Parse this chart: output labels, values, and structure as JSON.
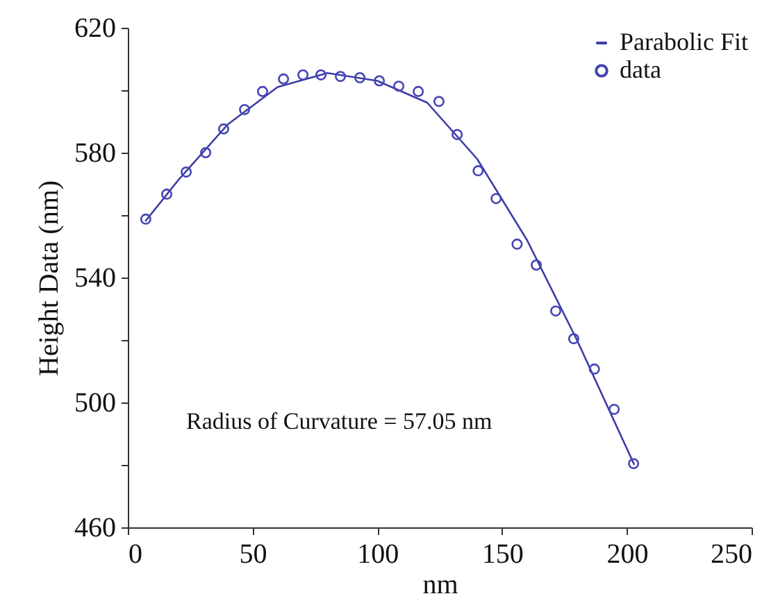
{
  "chart_data": {
    "type": "line",
    "xlabel": "nm",
    "ylabel": "Height Data (nm)",
    "xlim": [
      0,
      250
    ],
    "xticks": [
      0,
      50,
      100,
      150,
      200,
      250
    ],
    "ylim": [
      460,
      620
    ],
    "yticks": [
      460,
      {
        "value": 480,
        "label": null
      },
      500,
      {
        "value": 520,
        "label": null
      },
      540,
      {
        "value": 560,
        "label": null
      },
      580,
      {
        "value": 600,
        "label": null
      },
      620
    ],
    "legend": "top right",
    "grid": false,
    "line_style": "solid",
    "annotations": [
      "Radius of Curvature = 57.05 nm"
    ],
    "series": [
      {
        "name": "Parabolic Fit",
        "color": "#3c3ca8",
        "x": [
          7,
          20,
          40,
          60,
          80,
          100,
          120,
          140,
          160,
          180,
          203
        ],
        "values": [
          558,
          571,
          589,
          601,
          605.5,
          603,
          596,
          578,
          552,
          520,
          480
        ]
      },
      {
        "name": "data",
        "type": "scatter",
        "marker": "circle",
        "color": "#4545b5",
        "x": [
          7.2,
          15.6,
          23.4,
          31.2,
          38.4,
          46.8,
          54,
          62.4,
          70.2,
          77.4,
          85.2,
          93,
          100.8,
          108.6,
          116.4,
          124.7,
          132,
          140.4,
          147.6,
          156,
          163.7,
          171.5,
          178.7,
          187,
          194.9,
          202.7
        ],
        "values": [
          558.7,
          566.7,
          573.8,
          580,
          587.6,
          593.8,
          599.6,
          603.6,
          604.9,
          604.9,
          604.4,
          604,
          603,
          601.3,
          599.6,
          596.4,
          585.8,
          574.2,
          565.3,
          550.7,
          544,
          529.3,
          520.4,
          510.7,
          497.8,
          480.4
        ]
      }
    ]
  }
}
